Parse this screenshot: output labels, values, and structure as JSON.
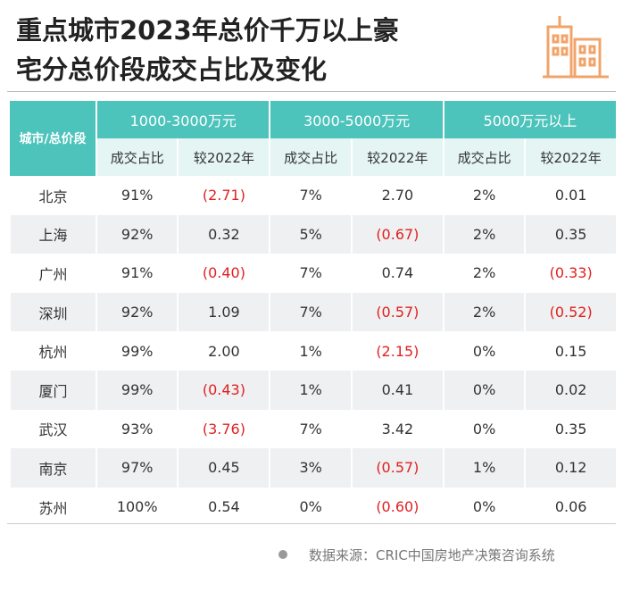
{
  "header": {
    "title_lines": [
      "重点城市2023年总价千万以上豪",
      "宅分总价段成交占比及变化"
    ]
  },
  "table": {
    "corner": "城市/总价段",
    "groups": [
      "1000-3000万元",
      "3000-5000万元",
      "5000万元以上"
    ],
    "subheaders": [
      "成交占比",
      "较2022年",
      "成交占比",
      "较2022年",
      "成交占比",
      "较2022年"
    ],
    "rows": [
      [
        "北京",
        "91%",
        "(2.71)",
        "7%",
        "2.70",
        "2%",
        "0.01"
      ],
      [
        "上海",
        "92%",
        "0.32",
        "5%",
        "(0.67)",
        "2%",
        "0.35"
      ],
      [
        "广州",
        "91%",
        "(0.40)",
        "7%",
        "0.74",
        "2%",
        "(0.33)"
      ],
      [
        "深圳",
        "92%",
        "1.09",
        "7%",
        "(0.57)",
        "2%",
        "(0.52)"
      ],
      [
        "杭州",
        "99%",
        "2.00",
        "1%",
        "(2.15)",
        "0%",
        "0.15"
      ],
      [
        "厦门",
        "99%",
        "(0.43)",
        "1%",
        "0.41",
        "0%",
        "0.02"
      ],
      [
        "武汉",
        "93%",
        "(3.76)",
        "7%",
        "3.42",
        "0%",
        "0.35"
      ],
      [
        "南京",
        "97%",
        "0.45",
        "3%",
        "(0.57)",
        "1%",
        "0.12"
      ],
      [
        "苏州",
        "100%",
        "0.54",
        "0%",
        "(0.60)",
        "0%",
        "0.06"
      ]
    ]
  },
  "footer": {
    "source": "数据来源：CRIC中国房地产决策咨询系统"
  }
}
